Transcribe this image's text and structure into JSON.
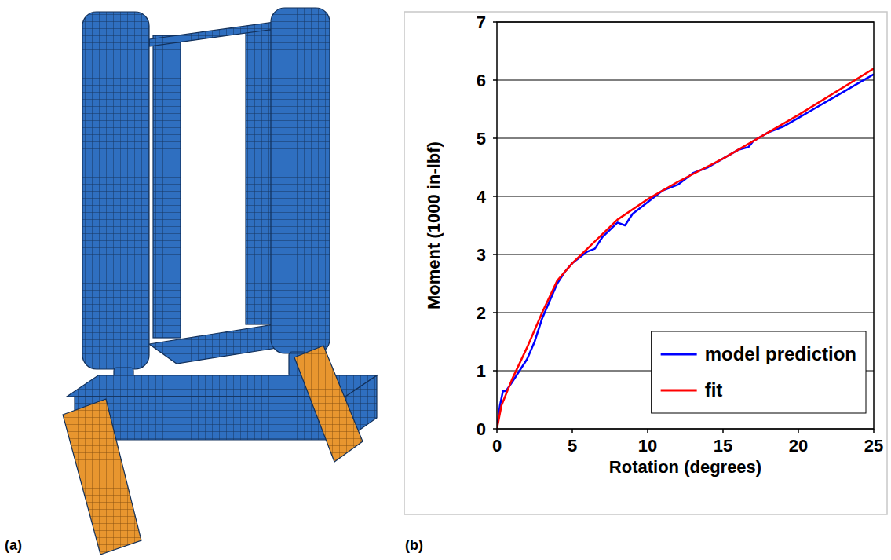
{
  "panel_labels": [
    "(a)",
    "(b)"
  ],
  "chart_data": {
    "type": "line",
    "x_label": "Rotation (degrees)",
    "y_label": "Moment (1000 in-lbf)",
    "xlim": [
      0,
      25
    ],
    "ylim": [
      0,
      7
    ],
    "xticks": [
      0,
      5,
      10,
      15,
      20,
      25
    ],
    "yticks": [
      0,
      1,
      2,
      3,
      4,
      5,
      6,
      7
    ],
    "grid": true,
    "legend": "lower right",
    "series": [
      {
        "name": "model prediction",
        "color": "#0000ff",
        "x": [
          0,
          0.2,
          0.4,
          0.6,
          1,
          1.5,
          2,
          2.5,
          3,
          3.5,
          4,
          4.5,
          5,
          6,
          6.5,
          7,
          8,
          8.5,
          9,
          10,
          11,
          12,
          13,
          14,
          15,
          16,
          16.7,
          17,
          18,
          19,
          20,
          21,
          22,
          23,
          24,
          25
        ],
        "values": [
          0,
          0.4,
          0.65,
          0.65,
          0.8,
          1.0,
          1.2,
          1.5,
          1.9,
          2.2,
          2.5,
          2.7,
          2.85,
          3.05,
          3.1,
          3.3,
          3.55,
          3.5,
          3.7,
          3.9,
          4.1,
          4.2,
          4.4,
          4.5,
          4.65,
          4.8,
          4.85,
          4.95,
          5.1,
          5.2,
          5.35,
          5.5,
          5.65,
          5.8,
          5.95,
          6.1
        ]
      },
      {
        "name": "fit",
        "color": "#ff0000",
        "x": [
          0,
          0.3,
          1,
          2,
          3,
          4,
          5,
          6,
          7,
          8,
          10,
          12,
          15,
          17,
          20,
          25
        ],
        "values": [
          0,
          0.4,
          0.85,
          1.4,
          2.0,
          2.55,
          2.85,
          3.1,
          3.35,
          3.6,
          3.95,
          4.25,
          4.65,
          4.95,
          5.4,
          6.2
        ]
      }
    ]
  }
}
